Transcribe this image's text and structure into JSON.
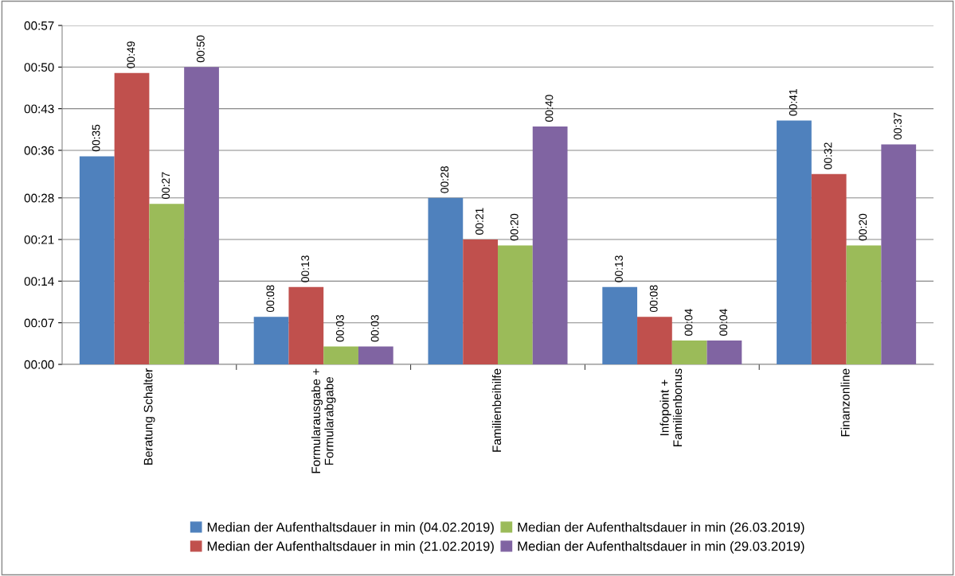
{
  "chart_data": {
    "type": "bar",
    "categories": [
      "Beratung Schalter",
      "Formularausgabe +\nFormularabgabe",
      "Familienbeihilfe",
      "Infopoint +\nFamilienbonus",
      "Finanzonline"
    ],
    "series": [
      {
        "name": "Median der Aufenthaltsdauer in min (04.02.2019)",
        "color": "#4f81bd",
        "values": [
          35,
          8,
          28,
          13,
          41
        ],
        "value_labels": [
          "00:35",
          "00:08",
          "00:28",
          "00:13",
          "00:41"
        ]
      },
      {
        "name": "Median der Aufenthaltsdauer in min (21.02.2019)",
        "color": "#c0504d",
        "values": [
          49,
          13,
          21,
          8,
          32
        ],
        "value_labels": [
          "00:49",
          "00:13",
          "00:21",
          "00:08",
          "00:32"
        ]
      },
      {
        "name": "Median der Aufenthaltsdauer in min (26.03.2019)",
        "color": "#9bbb59",
        "values": [
          27,
          3,
          20,
          4,
          20
        ],
        "value_labels": [
          "00:27",
          "00:03",
          "00:20",
          "00:04",
          "00:20"
        ]
      },
      {
        "name": "Median der Aufenthaltsdauer in min (29.03.2019)",
        "color": "#8064a2",
        "values": [
          50,
          3,
          40,
          4,
          37
        ],
        "value_labels": [
          "00:50",
          "00:03",
          "00:40",
          "00:04",
          "00:37"
        ]
      }
    ],
    "ylim": [
      0,
      57
    ],
    "yticks": [
      {
        "value": 0,
        "label": "00:00"
      },
      {
        "value": 7,
        "label": "00:07"
      },
      {
        "value": 14,
        "label": "00:14"
      },
      {
        "value": 21,
        "label": "00:21"
      },
      {
        "value": 28,
        "label": "00:28"
      },
      {
        "value": 36,
        "label": "00:36"
      },
      {
        "value": 43,
        "label": "00:43"
      },
      {
        "value": 50,
        "label": "00:50"
      },
      {
        "value": 57,
        "label": "00:57"
      }
    ],
    "grid": "y",
    "legend": "bottom"
  }
}
